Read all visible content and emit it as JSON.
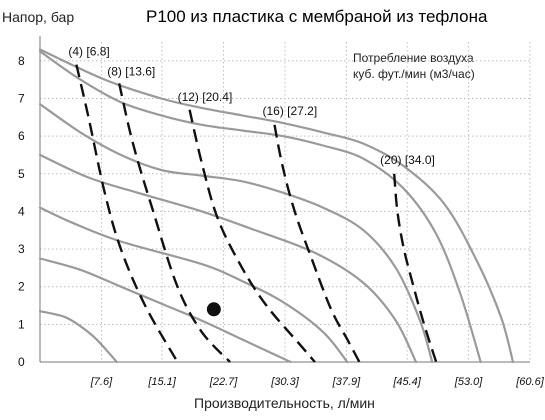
{
  "chart_data": {
    "type": "line",
    "title": "P100 из пластика с мембраной из тефлона",
    "ylabel": "Напор, бар",
    "xlabel": "Производительность, л/мин",
    "note_lines": [
      "Потребление воздуха",
      "куб. фут./мин (м3/час)"
    ],
    "xlim": [
      0,
      60.6
    ],
    "ylim": [
      0,
      8.5
    ],
    "x_ticks": [
      "[7.6]",
      "[15.1]",
      "[22.7]",
      "[30.3]",
      "[37.9]",
      "[45.4]",
      "[53.0]",
      "[60.6]"
    ],
    "x_tick_values": [
      7.6,
      15.1,
      22.7,
      30.3,
      37.9,
      45.4,
      53.0,
      60.6
    ],
    "y_ticks": [
      "0",
      "1",
      "2",
      "3",
      "4",
      "5",
      "6",
      "7",
      "8"
    ],
    "y_tick_values": [
      0,
      1,
      2,
      3,
      4,
      5,
      6,
      7,
      8
    ],
    "grid": true,
    "performance_curves": [
      {
        "points": [
          [
            0,
            1.35
          ],
          [
            3,
            1.2
          ],
          [
            5,
            0.95
          ],
          [
            7,
            0.6
          ],
          [
            9.5,
            0
          ]
        ]
      },
      {
        "points": [
          [
            0,
            2.75
          ],
          [
            5,
            2.45
          ],
          [
            10,
            2.0
          ],
          [
            15,
            1.55
          ],
          [
            20,
            1.1
          ],
          [
            25,
            0.6
          ],
          [
            30,
            0.1
          ],
          [
            31,
            0
          ]
        ]
      },
      {
        "points": [
          [
            0,
            4.1
          ],
          [
            4,
            3.7
          ],
          [
            10,
            3.2
          ],
          [
            20,
            2.6
          ],
          [
            25,
            2.15
          ],
          [
            30,
            1.6
          ],
          [
            35,
            0.8
          ],
          [
            38,
            0
          ]
        ]
      },
      {
        "points": [
          [
            0,
            5.5
          ],
          [
            6,
            4.9
          ],
          [
            12,
            4.5
          ],
          [
            20,
            4.0
          ],
          [
            26,
            3.55
          ],
          [
            34,
            2.9
          ],
          [
            40,
            2.1
          ],
          [
            44,
            1.1
          ],
          [
            46.5,
            0
          ]
        ]
      },
      {
        "points": [
          [
            0,
            6.85
          ],
          [
            5,
            6.1
          ],
          [
            10,
            5.5
          ],
          [
            15,
            5.1
          ],
          [
            20,
            4.95
          ],
          [
            25,
            4.8
          ],
          [
            30,
            4.5
          ],
          [
            35,
            4.1
          ],
          [
            40,
            3.5
          ],
          [
            44,
            2.5
          ],
          [
            47,
            1.1
          ],
          [
            48.5,
            0
          ]
        ]
      },
      {
        "points": [
          [
            0,
            8.25
          ],
          [
            5,
            7.5
          ],
          [
            10,
            6.9
          ],
          [
            15,
            6.55
          ],
          [
            20,
            6.3
          ],
          [
            25,
            6.15
          ],
          [
            30,
            6.0
          ],
          [
            35,
            5.75
          ],
          [
            40,
            5.4
          ],
          [
            45,
            4.6
          ],
          [
            49,
            3.4
          ],
          [
            52,
            1.8
          ],
          [
            54.5,
            0
          ]
        ]
      },
      {
        "points": [
          [
            0,
            8.3
          ],
          [
            8,
            7.5
          ],
          [
            15,
            7.0
          ],
          [
            20,
            6.75
          ],
          [
            25,
            6.55
          ],
          [
            30,
            6.35
          ],
          [
            35,
            6.1
          ],
          [
            40,
            5.8
          ],
          [
            45,
            5.2
          ],
          [
            50,
            4.2
          ],
          [
            54,
            2.7
          ],
          [
            57,
            1.2
          ],
          [
            58.5,
            0
          ]
        ]
      }
    ],
    "air_lines": [
      {
        "label": "(4) [6.8]",
        "points": [
          [
            4.5,
            7.9
          ],
          [
            6,
            6.5
          ],
          [
            8,
            4.5
          ],
          [
            10,
            3.0
          ],
          [
            13,
            1.5
          ],
          [
            17,
            0
          ]
        ]
      },
      {
        "label": "(8) [13.6]",
        "points": [
          [
            9.8,
            7.4
          ],
          [
            11.5,
            5.8
          ],
          [
            14,
            4.0
          ],
          [
            17,
            2.0
          ],
          [
            20,
            0.8
          ],
          [
            23.5,
            0
          ]
        ]
      },
      {
        "label": "(12) [20.4]",
        "points": [
          [
            18.5,
            6.7
          ],
          [
            20,
            5.3
          ],
          [
            22,
            3.8
          ],
          [
            25,
            2.5
          ],
          [
            28,
            1.5
          ],
          [
            32,
            0.5
          ],
          [
            34,
            0
          ]
        ]
      },
      {
        "label": "(16) [27.2]",
        "points": [
          [
            29,
            6.3
          ],
          [
            30,
            5.2
          ],
          [
            31.5,
            4.0
          ],
          [
            33.5,
            2.8
          ],
          [
            36,
            1.4
          ],
          [
            38,
            0.6
          ],
          [
            39.5,
            0
          ]
        ]
      },
      {
        "label": "(20) [34.0]",
        "points": [
          [
            43.8,
            5.0
          ],
          [
            44.2,
            4.0
          ],
          [
            45,
            3.0
          ],
          [
            46.2,
            2.0
          ],
          [
            47.5,
            1.0
          ],
          [
            49,
            0
          ]
        ]
      }
    ],
    "marker": {
      "x": 21.5,
      "y": 1.4
    }
  }
}
